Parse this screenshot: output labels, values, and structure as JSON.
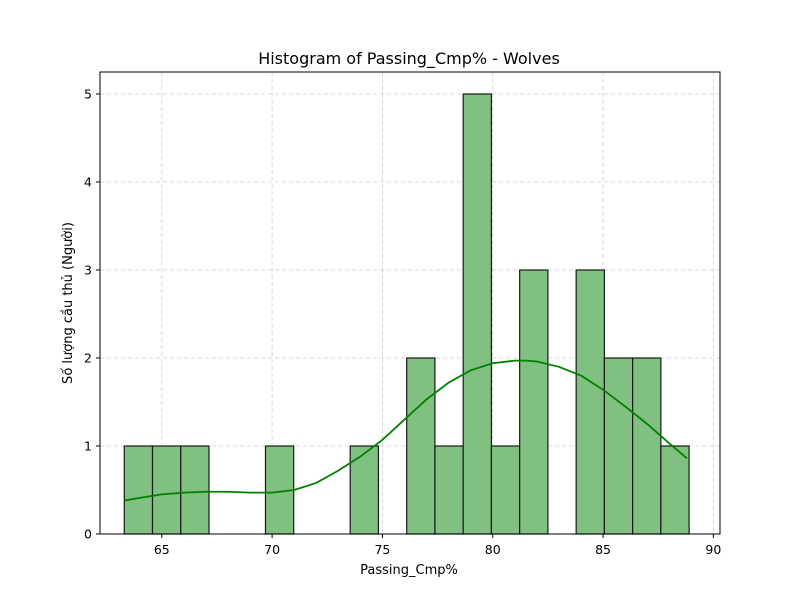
{
  "chart_data": {
    "type": "bar",
    "title": "Histogram of Passing_Cmp% - Wolves",
    "xlabel": "Passing_Cmp%",
    "ylabel": "Số lượng cầu thủ (Người)",
    "xlim": [
      62.2,
      90.3
    ],
    "ylim": [
      0,
      5.25
    ],
    "xticks": [
      65,
      70,
      75,
      80,
      85,
      90
    ],
    "yticks": [
      0,
      1,
      2,
      3,
      4,
      5
    ],
    "grid": true,
    "bins": [
      {
        "x0": 63.3,
        "x1": 64.58,
        "count": 1
      },
      {
        "x0": 64.58,
        "x1": 65.86,
        "count": 1
      },
      {
        "x0": 65.86,
        "x1": 67.14,
        "count": 1
      },
      {
        "x0": 67.14,
        "x1": 68.42,
        "count": 0
      },
      {
        "x0": 68.42,
        "x1": 69.7,
        "count": 0
      },
      {
        "x0": 69.7,
        "x1": 70.98,
        "count": 1
      },
      {
        "x0": 70.98,
        "x1": 72.26,
        "count": 0
      },
      {
        "x0": 72.26,
        "x1": 73.54,
        "count": 0
      },
      {
        "x0": 73.54,
        "x1": 74.82,
        "count": 1
      },
      {
        "x0": 74.82,
        "x1": 76.1,
        "count": 0
      },
      {
        "x0": 76.1,
        "x1": 77.38,
        "count": 2
      },
      {
        "x0": 77.38,
        "x1": 78.66,
        "count": 1
      },
      {
        "x0": 78.66,
        "x1": 79.94,
        "count": 5
      },
      {
        "x0": 79.94,
        "x1": 81.22,
        "count": 1
      },
      {
        "x0": 81.22,
        "x1": 82.5,
        "count": 3
      },
      {
        "x0": 82.5,
        "x1": 83.78,
        "count": 0
      },
      {
        "x0": 83.78,
        "x1": 85.06,
        "count": 3
      },
      {
        "x0": 85.06,
        "x1": 86.34,
        "count": 2
      },
      {
        "x0": 86.34,
        "x1": 87.62,
        "count": 2
      },
      {
        "x0": 87.62,
        "x1": 88.9,
        "count": 1
      }
    ],
    "kde": {
      "x": [
        63.3,
        64.0,
        65.0,
        66.0,
        67.0,
        68.0,
        69.0,
        70.0,
        71.0,
        72.0,
        73.0,
        74.0,
        75.0,
        76.0,
        77.0,
        78.0,
        79.0,
        80.0,
        81.0,
        81.5,
        82.0,
        83.0,
        84.0,
        85.0,
        86.0,
        87.0,
        88.0,
        88.8
      ],
      "y": [
        0.38,
        0.41,
        0.45,
        0.47,
        0.48,
        0.48,
        0.47,
        0.47,
        0.5,
        0.58,
        0.72,
        0.88,
        1.07,
        1.3,
        1.53,
        1.72,
        1.86,
        1.94,
        1.97,
        1.97,
        1.96,
        1.9,
        1.8,
        1.64,
        1.45,
        1.25,
        1.03,
        0.86
      ]
    },
    "colors": {
      "bar_fill": "#80c080",
      "bar_edge": "#1a1a1a",
      "kde_line": "#008000",
      "grid": "#cccccc"
    }
  }
}
